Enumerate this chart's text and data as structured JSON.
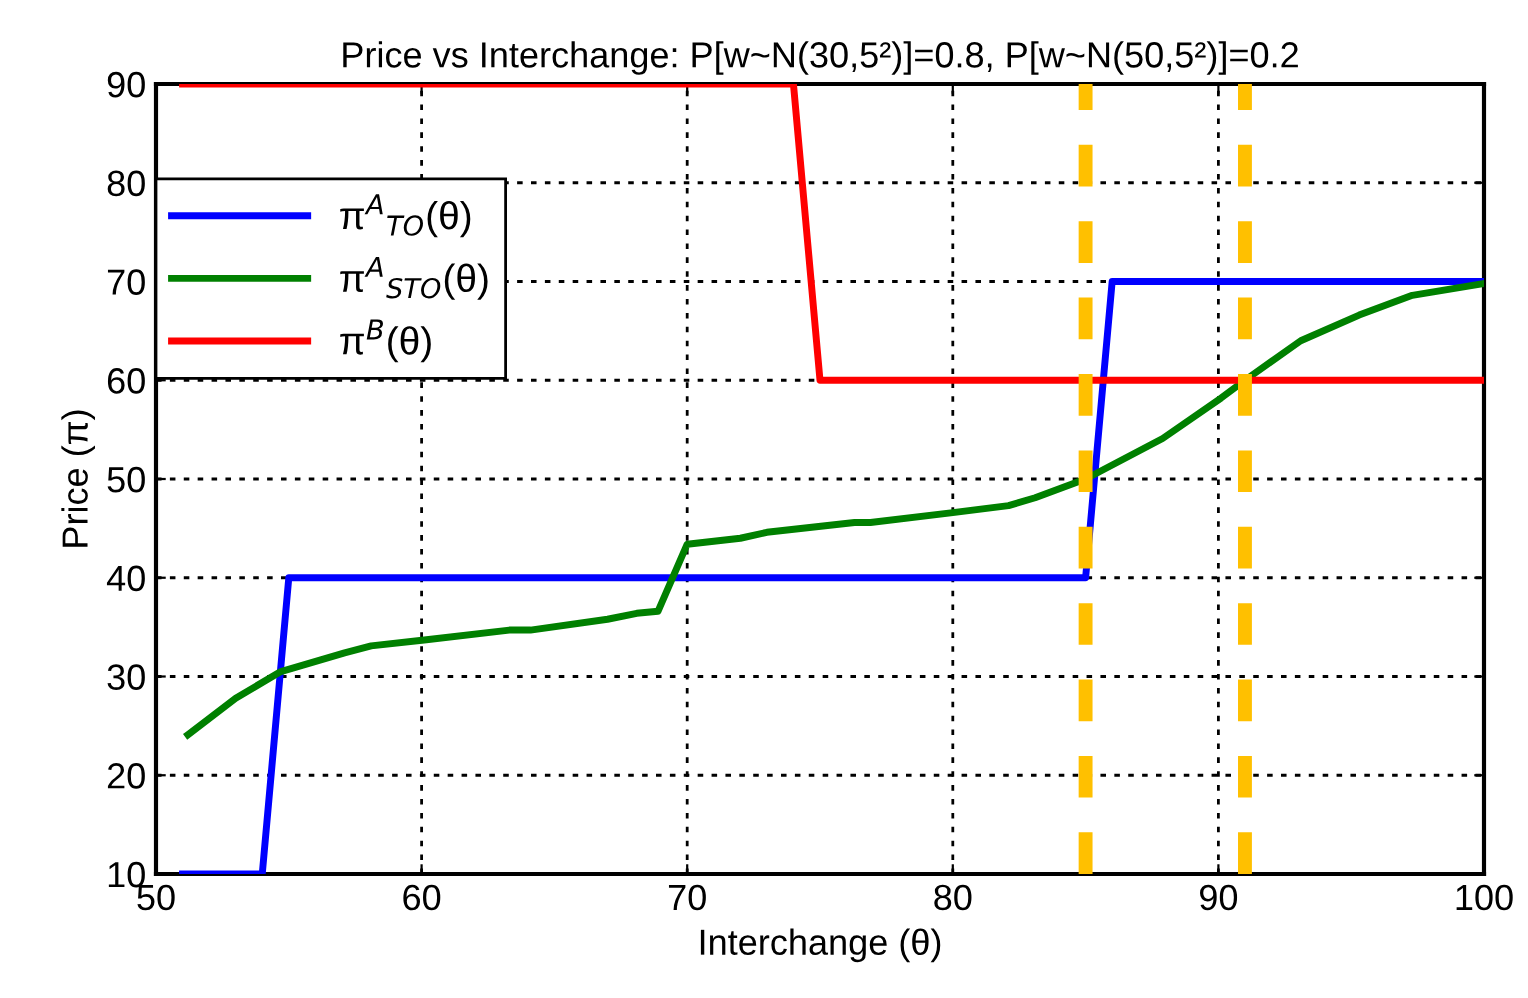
{
  "chart_data": {
    "type": "line",
    "title": "Price vs Interchange: P[w~N(30,5²)]=0.8, P[w~N(50,5²)]=0.2",
    "xlabel": "Interchange (θ)",
    "ylabel": "Price (π)",
    "series": [
      {
        "name": "π$^{A}$$_{TO}$(θ)",
        "color": "#0000ff",
        "x": [
          51,
          54,
          55,
          85,
          86,
          100
        ],
        "values": [
          10,
          10,
          40,
          40,
          70,
          70
        ]
      },
      {
        "name": "π$^{A}$$_{STO}$(θ)",
        "color": "#008000",
        "x": [
          51.2,
          53,
          54.7,
          57.1,
          58.1,
          60.1,
          63.3,
          64.1,
          67,
          68.1,
          68.9,
          70,
          72,
          73,
          76.3,
          76.9,
          80,
          82.1,
          83.1,
          85,
          87.9,
          90.1,
          91,
          93.1,
          95.3,
          97.3,
          100
        ],
        "values": [
          24.1,
          27.8,
          30.5,
          32.4,
          33.1,
          33.7,
          34.7,
          34.7,
          35.8,
          36.4,
          36.6,
          43.4,
          44,
          44.6,
          45.6,
          45.6,
          46.6,
          47.3,
          48.1,
          50,
          54.1,
          58.2,
          60,
          64,
          66.6,
          68.6,
          69.8
        ]
      },
      {
        "name": "π$^{B}$(θ)",
        "color": "#ff0000",
        "x": [
          51,
          74,
          75,
          100
        ],
        "values": [
          90,
          90,
          60,
          60
        ]
      }
    ],
    "ref_lines": [
      {
        "axis": "x",
        "value": 85,
        "color": "#ffc000",
        "line_style": "dashed"
      },
      {
        "axis": "x",
        "value": 91,
        "color": "#ffc000",
        "line_style": "dashed"
      }
    ],
    "xlim": [
      50,
      100
    ],
    "xticks": [
      50,
      60,
      70,
      80,
      90,
      100
    ],
    "ylim": [
      10,
      90
    ],
    "yticks": [
      10,
      20,
      30,
      40,
      50,
      60,
      70,
      80,
      90
    ],
    "grid": true,
    "legend": "upper left",
    "line_style": "solid",
    "marker": "none"
  }
}
